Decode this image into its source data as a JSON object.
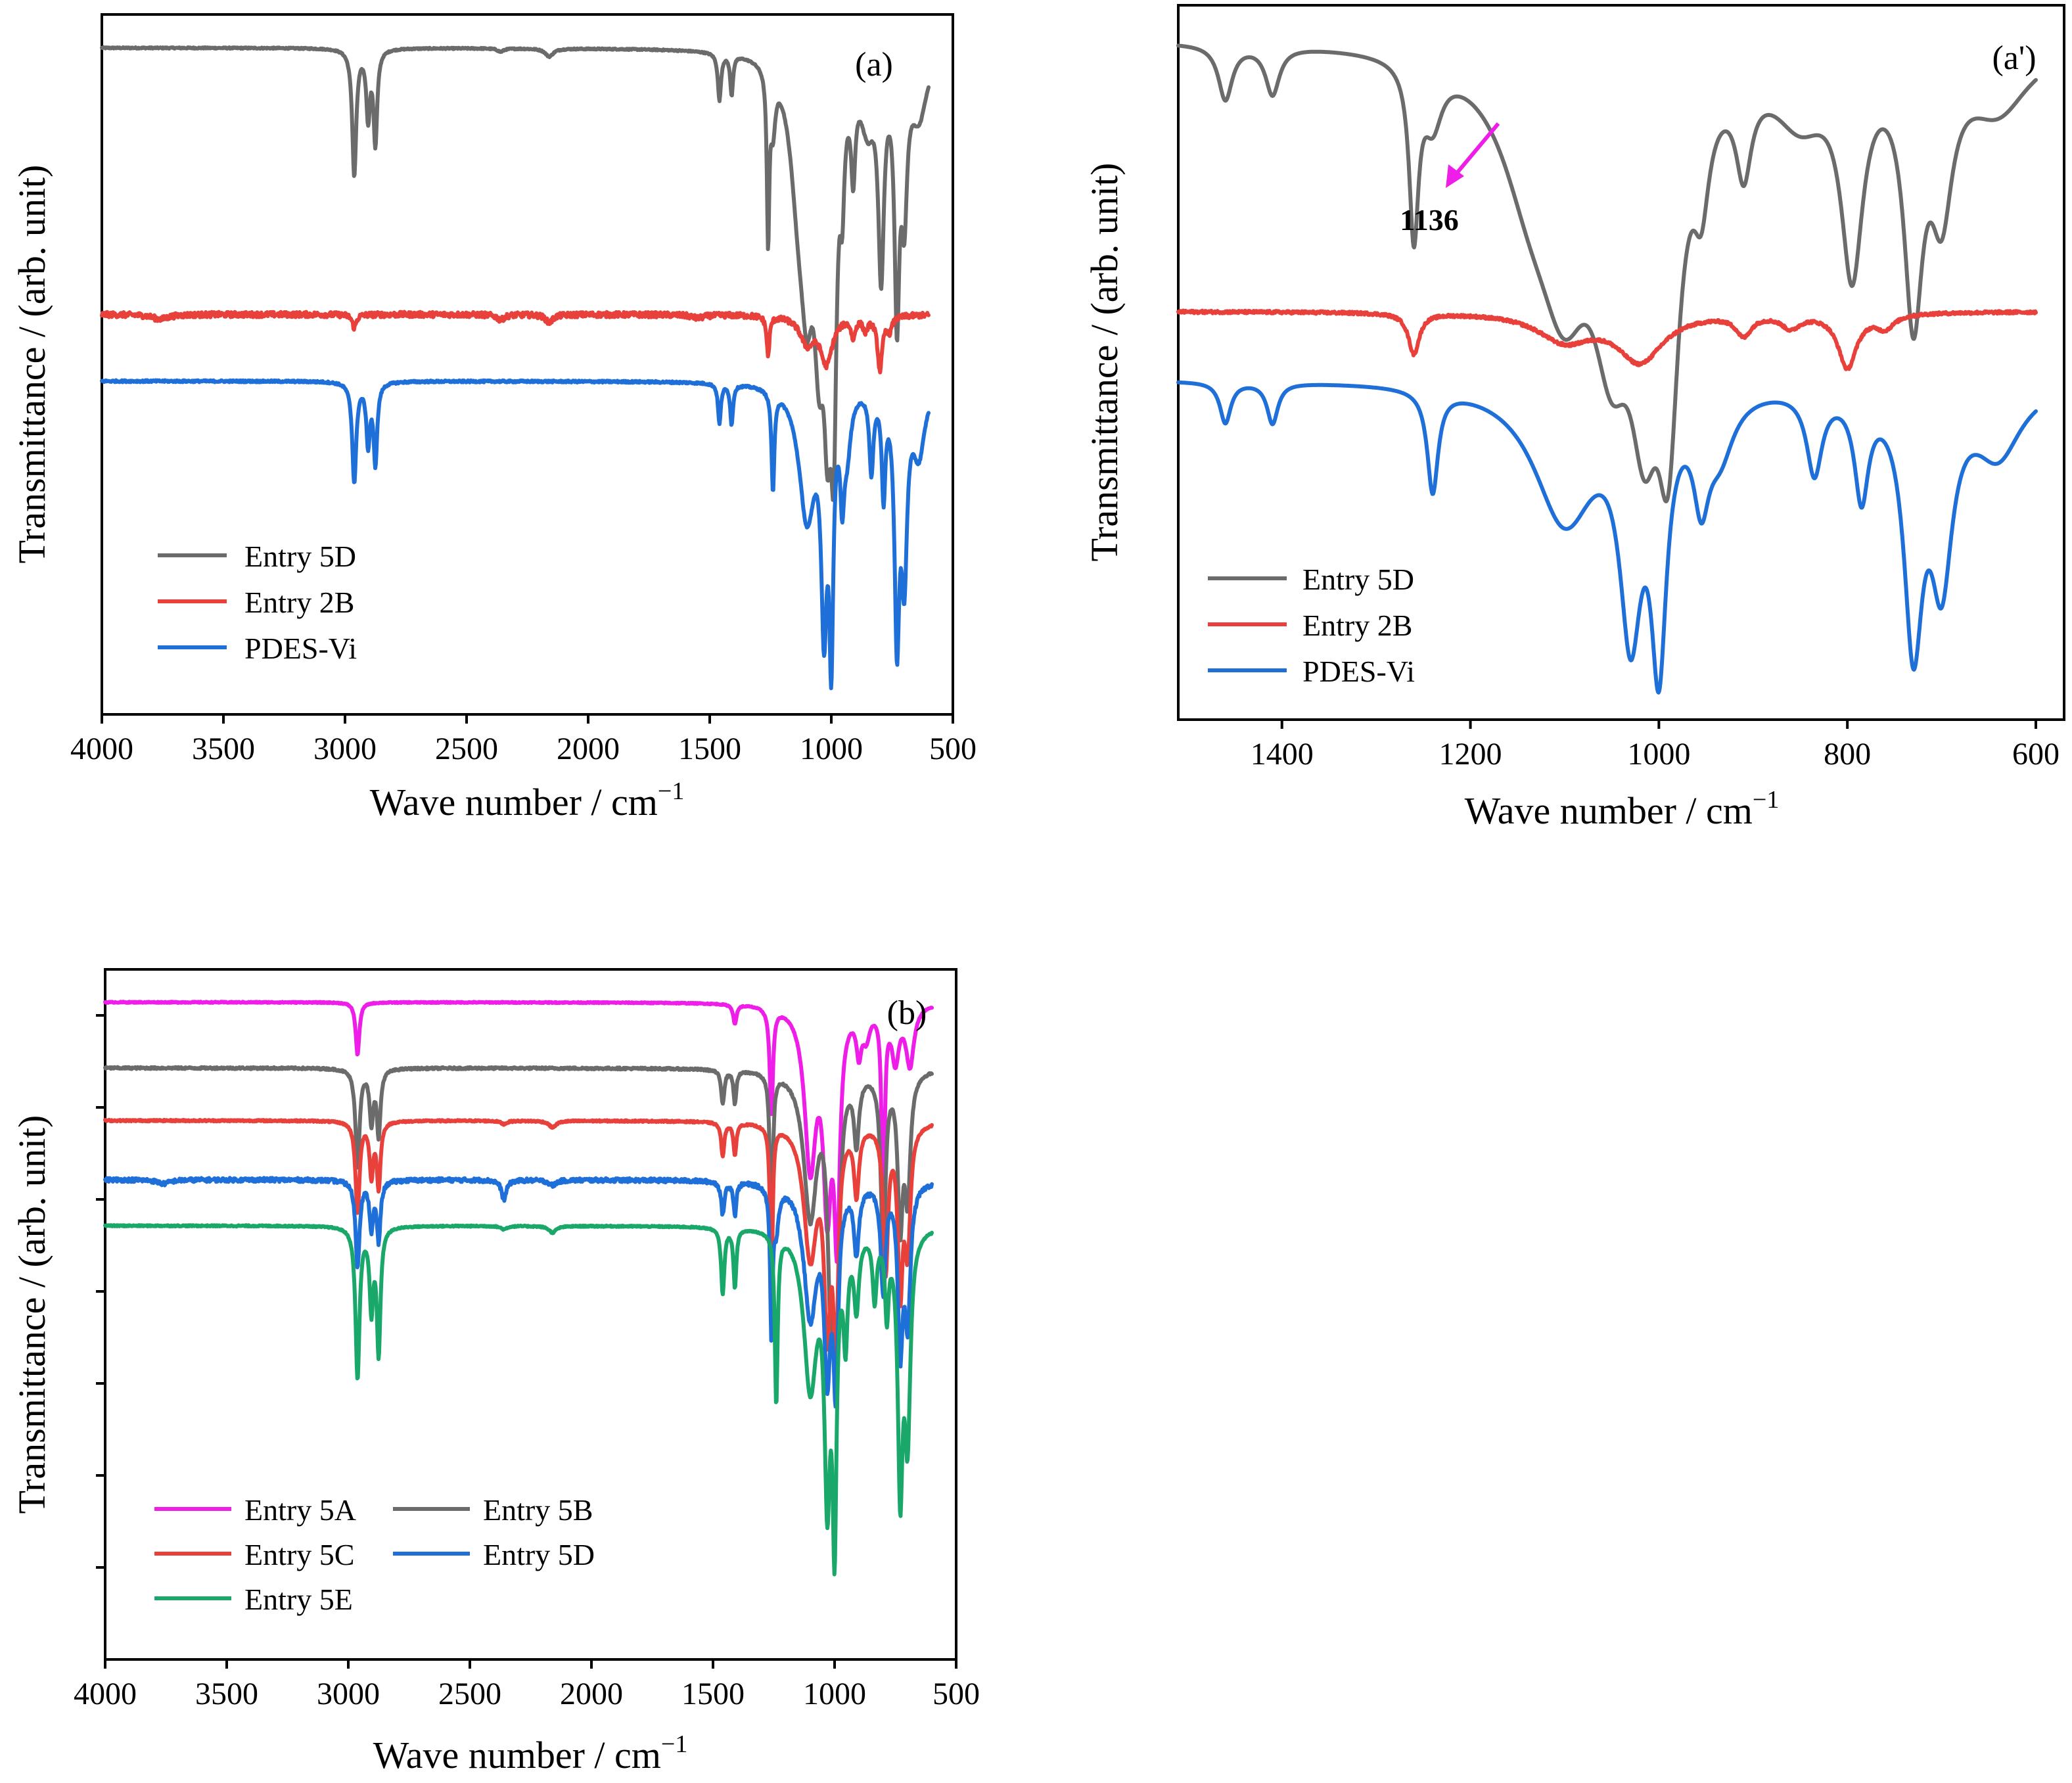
{
  "colors": {
    "gray": "#6b6b6b",
    "red": "#e8403a",
    "blue": "#1f6fd8",
    "magenta": "#ee1ee8",
    "green": "#1aa86a"
  },
  "chart_data": [
    {
      "id": "a",
      "type": "line",
      "panel_label": "(a)",
      "xlabel": "Wave number / cm",
      "xlabel_sup": "−1",
      "ylabel": "Transmittance / (arb. unit)",
      "xlim": [
        4000,
        500
      ],
      "ylim": [
        0,
        10.5
      ],
      "x_ticks": [
        4000,
        3500,
        3000,
        2500,
        2000,
        1500,
        1000,
        500
      ],
      "x_tick_labels": [
        "4000",
        "3500",
        "3000",
        "2500",
        "2000",
        "1500",
        "1000",
        "500"
      ],
      "y_ticks_visible": false,
      "legend_position": "bottom-left",
      "series": [
        {
          "name": "Entry 5D",
          "color": "gray",
          "x_start": 4000,
          "x_end": 600,
          "baseline": 10.0,
          "noise": 0.01,
          "peaks": [
            [
              2962,
              1.9,
              10
            ],
            [
              2905,
              1.0,
              9
            ],
            [
              2875,
              1.4,
              9
            ],
            [
              2160,
              0.12,
              20
            ],
            [
              2360,
              0.05,
              15
            ],
            [
              1460,
              0.7,
              8
            ],
            [
              1410,
              0.6,
              7
            ],
            [
              1260,
              2.5,
              6
            ],
            [
              1240,
              0.8,
              12
            ],
            [
              1136,
              1.5,
              40
            ],
            [
              1100,
              2.6,
              32
            ],
            [
              1050,
              3.1,
              26
            ],
            [
              1015,
              3.8,
              20
            ],
            [
              990,
              4.2,
              14
            ],
            [
              955,
              1.3,
              10
            ],
            [
              910,
              1.3,
              10
            ],
            [
              850,
              0.9,
              35
            ],
            [
              795,
              3.0,
              14
            ],
            [
              730,
              3.6,
              12
            ],
            [
              700,
              2.0,
              14
            ],
            [
              640,
              0.9,
              40
            ]
          ]
        },
        {
          "name": "Entry 2B",
          "color": "red",
          "x_start": 4000,
          "x_end": 600,
          "baseline": 6.0,
          "noise": 0.04,
          "peaks": [
            [
              3760,
              0.07,
              40
            ],
            [
              2962,
              0.2,
              10
            ],
            [
              2360,
              0.08,
              18
            ],
            [
              2160,
              0.12,
              18
            ],
            [
              1550,
              0.05,
              30
            ],
            [
              1260,
              0.6,
              7
            ],
            [
              1100,
              0.4,
              35
            ],
            [
              1020,
              0.7,
              30
            ],
            [
              910,
              0.3,
              10
            ],
            [
              860,
              0.2,
              12
            ],
            [
              800,
              0.8,
              12
            ],
            [
              760,
              0.2,
              12
            ]
          ]
        },
        {
          "name": "PDES-Vi",
          "color": "blue",
          "x_start": 4000,
          "x_end": 600,
          "baseline": 5.0,
          "noise": 0.015,
          "peaks": [
            [
              2962,
              1.5,
              10
            ],
            [
              2905,
              0.9,
              9
            ],
            [
              2875,
              1.2,
              9
            ],
            [
              1460,
              0.6,
              7
            ],
            [
              1410,
              0.6,
              7
            ],
            [
              1240,
              1.5,
              7
            ],
            [
              1100,
              2.0,
              40
            ],
            [
              1030,
              3.2,
              14
            ],
            [
              1000,
              3.6,
              10
            ],
            [
              955,
              1.3,
              10
            ],
            [
              935,
              0.8,
              18
            ],
            [
              835,
              1.2,
              10
            ],
            [
              785,
              1.5,
              9
            ],
            [
              730,
              3.6,
              12
            ],
            [
              700,
              2.6,
              14
            ],
            [
              640,
              1.0,
              30
            ]
          ]
        }
      ]
    },
    {
      "id": "a-prime",
      "type": "line",
      "panel_label": "(a')",
      "xlabel": "Wave number / cm",
      "xlabel_sup": "−1",
      "ylabel": "Transmittance / (arb. unit)",
      "xlim": [
        1510,
        570
      ],
      "ylim": [
        0,
        10.5
      ],
      "x_ticks": [
        1400,
        1200,
        1000,
        800,
        600
      ],
      "x_tick_labels": [
        "1400",
        "1200",
        "1000",
        "800",
        "600"
      ],
      "y_ticks_visible": false,
      "legend_position": "bottom-left",
      "annotation": {
        "text": "1136",
        "x": 1136,
        "arrow_to_x": 1200,
        "color": "magenta"
      },
      "series": [
        {
          "name": "Entry 5D",
          "color": "gray",
          "x_start": 1510,
          "x_end": 600,
          "baseline": 10.0,
          "noise": 0.0,
          "peaks": [
            [
              1460,
              0.8,
              9
            ],
            [
              1410,
              0.7,
              9
            ],
            [
              1260,
              2.5,
              6
            ],
            [
              1240,
              0.8,
              12
            ],
            [
              1136,
              1.5,
              40
            ],
            [
              1100,
              2.6,
              32
            ],
            [
              1050,
              3.1,
              26
            ],
            [
              1015,
              3.8,
              20
            ],
            [
              990,
              4.2,
              14
            ],
            [
              955,
              1.3,
              10
            ],
            [
              910,
              1.3,
              10
            ],
            [
              850,
              0.9,
              35
            ],
            [
              795,
              3.0,
              14
            ],
            [
              730,
              3.6,
              12
            ],
            [
              700,
              2.0,
              14
            ],
            [
              640,
              0.9,
              40
            ]
          ]
        },
        {
          "name": "Entry 2B",
          "color": "red",
          "x_start": 1510,
          "x_end": 600,
          "baseline": 6.0,
          "noise": 0.02,
          "peaks": [
            [
              1260,
              0.6,
              7
            ],
            [
              1100,
              0.4,
              35
            ],
            [
              1020,
              0.7,
              30
            ],
            [
              910,
              0.3,
              10
            ],
            [
              860,
              0.2,
              12
            ],
            [
              800,
              0.8,
              12
            ],
            [
              760,
              0.2,
              12
            ]
          ]
        },
        {
          "name": "PDES-Vi",
          "color": "blue",
          "x_start": 1510,
          "x_end": 600,
          "baseline": 5.0,
          "noise": 0.0,
          "peaks": [
            [
              1460,
              0.6,
              7
            ],
            [
              1410,
              0.6,
              7
            ],
            [
              1240,
              1.5,
              7
            ],
            [
              1100,
              2.0,
              40
            ],
            [
              1030,
              3.2,
              14
            ],
            [
              1000,
              3.6,
              10
            ],
            [
              955,
              1.3,
              10
            ],
            [
              935,
              0.8,
              18
            ],
            [
              835,
              1.2,
              10
            ],
            [
              785,
              1.5,
              9
            ],
            [
              730,
              3.6,
              12
            ],
            [
              700,
              2.6,
              14
            ],
            [
              640,
              1.0,
              30
            ]
          ]
        }
      ]
    },
    {
      "id": "b",
      "type": "line",
      "panel_label": "(b)",
      "xlabel": "Wave number / cm",
      "xlabel_sup": "−1",
      "ylabel": "Transmittance / (arb. unit)",
      "xlim": [
        4000,
        500
      ],
      "ylim": [
        0,
        10.5
      ],
      "x_ticks": [
        4000,
        3500,
        3000,
        2500,
        2000,
        1500,
        1000,
        500
      ],
      "x_tick_labels": [
        "4000",
        "3500",
        "3000",
        "2500",
        "2000",
        "1500",
        "1000",
        "500"
      ],
      "y_ticks_visible": true,
      "y_tick_count": 7,
      "legend_position": "bottom-left",
      "legend_columns": 2,
      "series": [
        {
          "name": "Entry 5A",
          "color": "magenta",
          "x_start": 4000,
          "x_end": 600,
          "baseline": 10.0,
          "noise": 0.008,
          "peaks": [
            [
              2962,
              0.8,
              9
            ],
            [
              1410,
              0.3,
              8
            ],
            [
              1260,
              1.6,
              8
            ],
            [
              1100,
              2.4,
              28
            ],
            [
              1030,
              2.8,
              20
            ],
            [
              990,
              3.2,
              14
            ],
            [
              900,
              0.6,
              12
            ],
            [
              870,
              0.4,
              18
            ],
            [
              800,
              3.3,
              7
            ],
            [
              750,
              0.8,
              18
            ],
            [
              690,
              0.9,
              20
            ]
          ]
        },
        {
          "name": "Entry 5B",
          "color": "gray",
          "x_start": 4000,
          "x_end": 600,
          "baseline": 9.0,
          "noise": 0.015,
          "peaks": [
            [
              2962,
              1.5,
              10
            ],
            [
              2905,
              0.8,
              9
            ],
            [
              2875,
              1.0,
              9
            ],
            [
              1460,
              0.5,
              8
            ],
            [
              1410,
              0.5,
              7
            ],
            [
              1260,
              3.0,
              6
            ],
            [
              1100,
              2.2,
              32
            ],
            [
              1015,
              3.2,
              16
            ],
            [
              990,
              3.4,
              12
            ],
            [
              910,
              1.0,
              12
            ],
            [
              800,
              2.6,
              12
            ],
            [
              730,
              2.2,
              12
            ],
            [
              700,
              1.8,
              14
            ]
          ]
        },
        {
          "name": "Entry 5C",
          "color": "red",
          "x_start": 4000,
          "x_end": 600,
          "baseline": 8.2,
          "noise": 0.012,
          "peaks": [
            [
              2962,
              1.4,
              10
            ],
            [
              2905,
              0.8,
              9
            ],
            [
              2875,
              1.0,
              9
            ],
            [
              2360,
              0.05,
              15
            ],
            [
              2160,
              0.1,
              18
            ],
            [
              1460,
              0.5,
              8
            ],
            [
              1410,
              0.5,
              7
            ],
            [
              1260,
              2.6,
              6
            ],
            [
              1100,
              2.0,
              32
            ],
            [
              1030,
              2.8,
              16
            ],
            [
              995,
              3.1,
              12
            ],
            [
              910,
              1.0,
              12
            ],
            [
              790,
              2.2,
              12
            ],
            [
              730,
              2.4,
              12
            ],
            [
              700,
              1.8,
              14
            ]
          ]
        },
        {
          "name": "Entry 5D",
          "color": "blue",
          "x_start": 4000,
          "x_end": 600,
          "baseline": 7.3,
          "noise": 0.03,
          "peaks": [
            [
              3760,
              0.06,
              30
            ],
            [
              2962,
              1.3,
              10
            ],
            [
              2905,
              0.7,
              9
            ],
            [
              2875,
              0.9,
              9
            ],
            [
              2360,
              0.3,
              12
            ],
            [
              2160,
              0.08,
              18
            ],
            [
              1460,
              0.5,
              8
            ],
            [
              1410,
              0.5,
              7
            ],
            [
              1260,
              2.2,
              6
            ],
            [
              1240,
              0.6,
              12
            ],
            [
              1100,
              2.0,
              32
            ],
            [
              1030,
              2.6,
              16
            ],
            [
              995,
              2.8,
              12
            ],
            [
              910,
              1.0,
              12
            ],
            [
              800,
              1.6,
              12
            ],
            [
              730,
              2.4,
              12
            ],
            [
              700,
              2.0,
              14
            ]
          ]
        },
        {
          "name": "Entry 5E",
          "color": "green",
          "x_start": 4000,
          "x_end": 600,
          "baseline": 6.6,
          "noise": 0.01,
          "peaks": [
            [
              2962,
              2.3,
              10
            ],
            [
              2905,
              1.2,
              9
            ],
            [
              2875,
              1.9,
              9
            ],
            [
              2360,
              0.05,
              15
            ],
            [
              2160,
              0.1,
              18
            ],
            [
              1460,
              1.0,
              8
            ],
            [
              1410,
              0.9,
              7
            ],
            [
              1240,
              2.6,
              7
            ],
            [
              1100,
              2.4,
              32
            ],
            [
              1030,
              3.7,
              14
            ],
            [
              1000,
              4.3,
              10
            ],
            [
              955,
              1.5,
              10
            ],
            [
              910,
              1.1,
              12
            ],
            [
              835,
              1.0,
              10
            ],
            [
              785,
              1.2,
              9
            ],
            [
              730,
              3.8,
              12
            ],
            [
              700,
              3.0,
              14
            ]
          ]
        }
      ]
    }
  ]
}
